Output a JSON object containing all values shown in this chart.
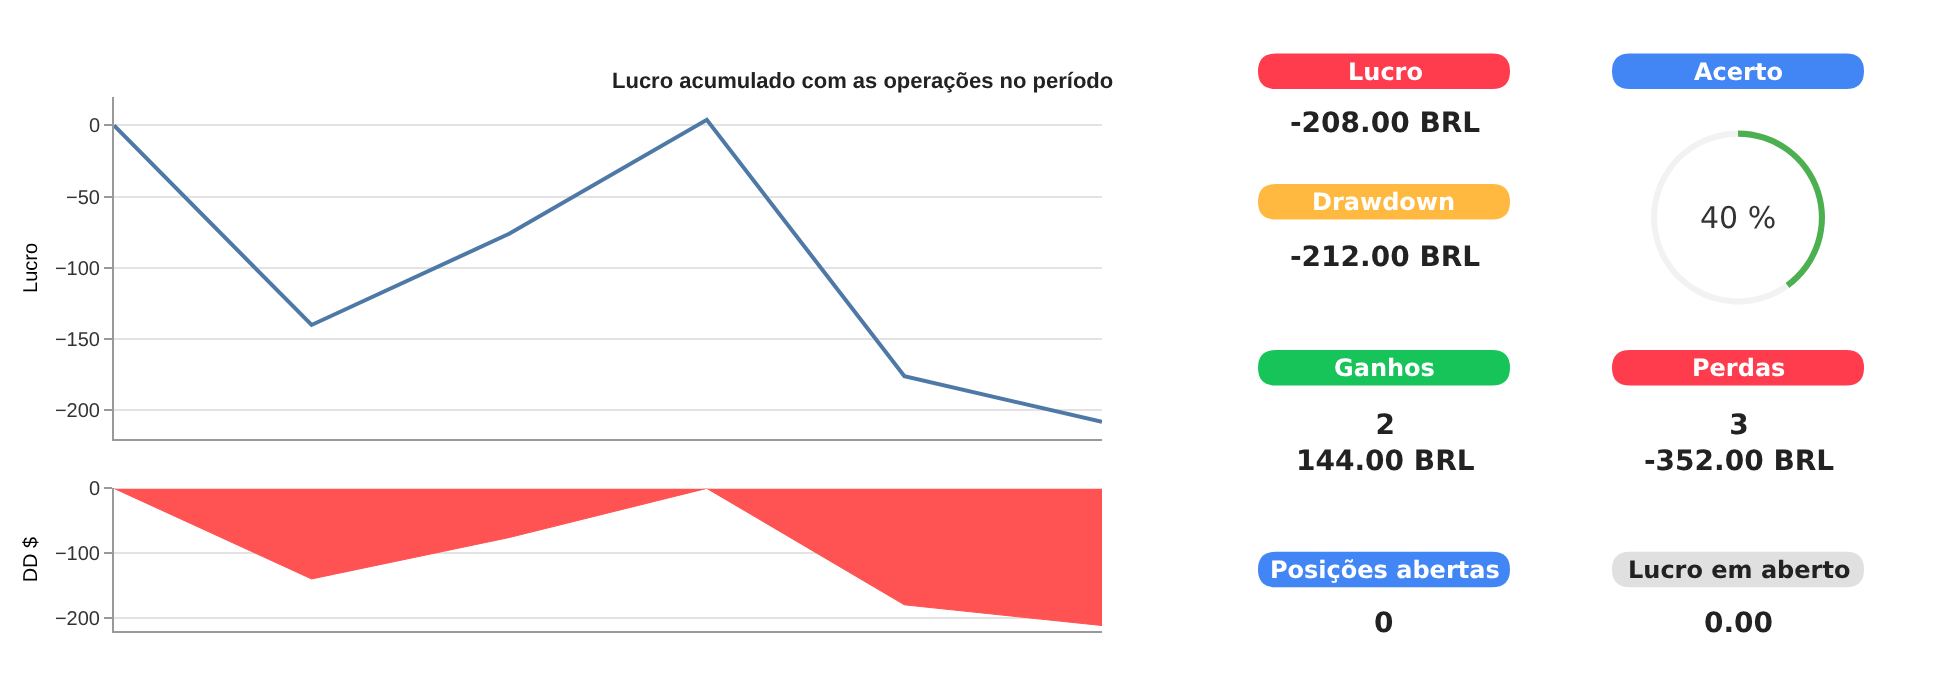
{
  "chart_data": [
    {
      "type": "line",
      "title": "Lucro acumulado com as operações no período",
      "ylabel": "Lucro",
      "categories": [
        null,
        null,
        null,
        null,
        null,
        null
      ],
      "ylim": [
        -220,
        20
      ],
      "yticks": [
        {
          "value": 0,
          "label": "0"
        },
        {
          "value": -50,
          "label": "−50"
        },
        {
          "value": -100,
          "label": "−100"
        },
        {
          "value": -150,
          "label": "−150"
        },
        {
          "value": -200,
          "label": "−200"
        }
      ],
      "tick_labels": "y",
      "grid": "y",
      "series": [
        {
          "color": "#4e79a7",
          "values": [
            0,
            -140,
            -76,
            4,
            -176,
            -208
          ]
        }
      ]
    },
    {
      "type": "area",
      "ylabel": "DD $",
      "categories": [
        null,
        null,
        null,
        null,
        null,
        null
      ],
      "ylim": [
        -220,
        0
      ],
      "yticks": [
        {
          "value": 0,
          "label": "0"
        },
        {
          "value": -100,
          "label": "−100"
        },
        {
          "value": -200,
          "label": "−200"
        }
      ],
      "tick_labels": "y",
      "grid": "y",
      "series": [
        {
          "color": "#ff5252",
          "values": [
            0,
            -140,
            -76,
            0,
            -180,
            -212
          ]
        }
      ]
    },
    {
      "type": "other",
      "categories": [
        "Lucro",
        "Acerto",
        "Drawdown",
        "Ganhos",
        "Perdas",
        "Posições abertas",
        "Lucro em aberto"
      ],
      "value_labels": [
        "-208.00 BRL",
        null,
        "-212.00 BRL",
        "2\n144.00 BRL",
        "3\n-352.00 BRL",
        "0",
        "0.00"
      ],
      "colors": [
        "#ff3b4e",
        "#4285f4",
        "#ffb940",
        "#16c45a",
        "#ff3b4e",
        "#4285f4",
        "#e0e0e0"
      ]
    },
    {
      "type": "donut",
      "categories": [
        null,
        null
      ],
      "values": [
        40,
        60
      ],
      "colors": [
        "#4caf50",
        "#f2f2f2"
      ],
      "annotations": [
        "40 %"
      ]
    }
  ]
}
